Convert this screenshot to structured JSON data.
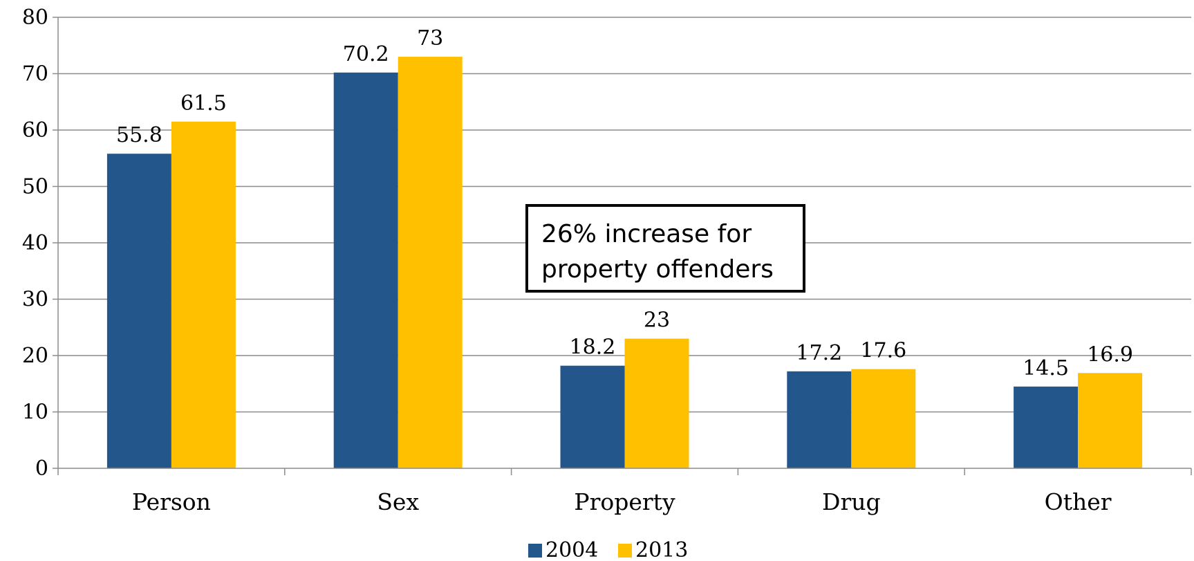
{
  "chart_data": {
    "type": "bar",
    "title": "",
    "xlabel": "",
    "ylabel": "",
    "categories": [
      "Person",
      "Sex",
      "Property",
      "Drug",
      "Other"
    ],
    "series": [
      {
        "name": "2004",
        "color": "#23568B",
        "values": [
          55.8,
          70.2,
          18.2,
          17.2,
          14.5
        ],
        "labels": [
          "55.8",
          "70.2",
          "18.2",
          "17.2",
          "14.5"
        ]
      },
      {
        "name": "2013",
        "color": "#FFC000",
        "values": [
          61.5,
          73,
          23,
          17.6,
          16.9
        ],
        "labels": [
          "61.5",
          "73",
          "23",
          "17.6",
          "16.9"
        ]
      }
    ],
    "ylim": [
      0,
      80
    ],
    "yticks": [
      0,
      10,
      20,
      30,
      40,
      50,
      60,
      70,
      80
    ],
    "grid": true,
    "legend": "bottom-center",
    "annotation": {
      "lines": [
        "26% increase for",
        "property offenders"
      ]
    }
  }
}
